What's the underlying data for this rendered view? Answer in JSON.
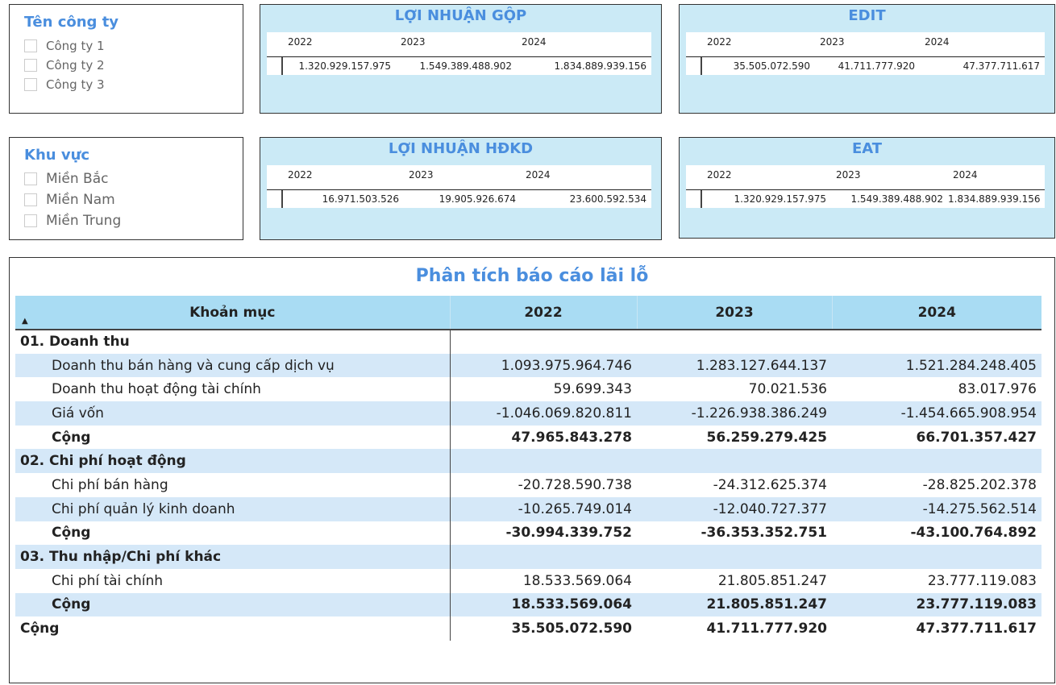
{
  "slicer_company": {
    "title": "Tên công ty",
    "options": [
      "Công ty 1",
      "Công ty 2",
      "Công ty 3"
    ]
  },
  "slicer_region": {
    "title": "Khu vực",
    "options": [
      "Miền Bắc",
      "Miền Nam",
      "Miền Trung"
    ]
  },
  "cards": {
    "gross_profit": {
      "title": "LỢI NHUẬN GỘP",
      "years": [
        "2022",
        "2023",
        "2024"
      ],
      "values": [
        "1.320.929.157.975",
        "1.549.389.488.902",
        "1.834.889.939.156"
      ]
    },
    "edit": {
      "title": "EDIT",
      "years": [
        "2022",
        "2023",
        "2024"
      ],
      "values": [
        "35.505.072.590",
        "41.711.777.920",
        "47.377.711.617"
      ]
    },
    "operating_profit": {
      "title": "LỢI NHUẬN HĐKD",
      "years": [
        "2022",
        "2023",
        "2024"
      ],
      "values": [
        "16.971.503.526",
        "19.905.926.674",
        "23.600.592.534"
      ]
    },
    "eat": {
      "title": "EAT",
      "years": [
        "2022",
        "2023",
        "2024"
      ],
      "values": [
        "1.320.929.157.975",
        "1.549.389.488.902",
        "1.834.889.939.156"
      ]
    }
  },
  "pl_table": {
    "title": "Phân tích báo cáo lãi lỗ",
    "headers": [
      "Khoản mục",
      "2022",
      "2023",
      "2024"
    ],
    "rows": [
      {
        "label": "01. Doanh thu",
        "type": "group",
        "values": [
          "",
          "",
          ""
        ]
      },
      {
        "label": "Doanh thu bán hàng và cung cấp dịch vụ",
        "type": "item",
        "values": [
          "1.093.975.964.746",
          "1.283.127.644.137",
          "1.521.284.248.405"
        ]
      },
      {
        "label": "Doanh thu hoạt động tài chính",
        "type": "item",
        "values": [
          "59.699.343",
          "70.021.536",
          "83.017.976"
        ]
      },
      {
        "label": "Giá vốn",
        "type": "item",
        "values": [
          "-1.046.069.820.811",
          "-1.226.938.386.249",
          "-1.454.665.908.954"
        ]
      },
      {
        "label": "Cộng",
        "type": "subtotal",
        "values": [
          "47.965.843.278",
          "56.259.279.425",
          "66.701.357.427"
        ]
      },
      {
        "label": "02. Chi phí hoạt động",
        "type": "group",
        "values": [
          "",
          "",
          ""
        ]
      },
      {
        "label": "Chi phí bán hàng",
        "type": "item",
        "values": [
          "-20.728.590.738",
          "-24.312.625.374",
          "-28.825.202.378"
        ]
      },
      {
        "label": "Chi phí quản lý kinh doanh",
        "type": "item",
        "values": [
          "-10.265.749.014",
          "-12.040.727.377",
          "-14.275.562.514"
        ]
      },
      {
        "label": "Cộng",
        "type": "subtotal",
        "values": [
          "-30.994.339.752",
          "-36.353.352.751",
          "-43.100.764.892"
        ]
      },
      {
        "label": "03. Thu nhập/Chi phí khác",
        "type": "group",
        "values": [
          "",
          "",
          ""
        ]
      },
      {
        "label": "Chi phí tài chính",
        "type": "item",
        "values": [
          "18.533.569.064",
          "21.805.851.247",
          "23.777.119.083"
        ]
      },
      {
        "label": "Cộng",
        "type": "subtotal",
        "values": [
          "18.533.569.064",
          "21.805.851.247",
          "23.777.119.083"
        ]
      },
      {
        "label": "Cộng",
        "type": "total",
        "values": [
          "35.505.072.590",
          "41.711.777.920",
          "47.377.711.617"
        ]
      }
    ]
  }
}
